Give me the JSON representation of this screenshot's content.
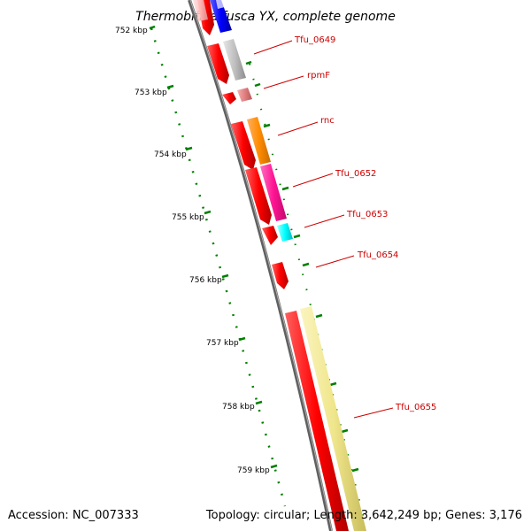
{
  "title": "Thermobifida fusca YX, complete genome",
  "footer": {
    "accession": "Accession: NC_007333",
    "summary": "Topology: circular; Length: 3,642,249 bp; Genes: 3,176"
  },
  "scale_labels": [
    "752 kbp",
    "753 kbp",
    "754 kbp",
    "755 kbp",
    "756 kbp",
    "757 kbp",
    "758 kbp",
    "759 kbp"
  ],
  "gene_labels": [
    "Tfu_0649",
    "rpmF",
    "rnc",
    "Tfu_0652",
    "Tfu_0653",
    "Tfu_0654",
    "Tfu_0655"
  ],
  "colors": {
    "backbone": "#808080",
    "cds": "#ff0000",
    "scale_ticks": "#008000",
    "labels": "#cc0000",
    "Tfu_0649": "#c0c0c0",
    "rpmF": "#e08080",
    "rnc": "#ff8c00",
    "Tfu_0652": "#ff1493",
    "Tfu_0653": "#00ffff",
    "Tfu_0655": "#f0e68c"
  }
}
